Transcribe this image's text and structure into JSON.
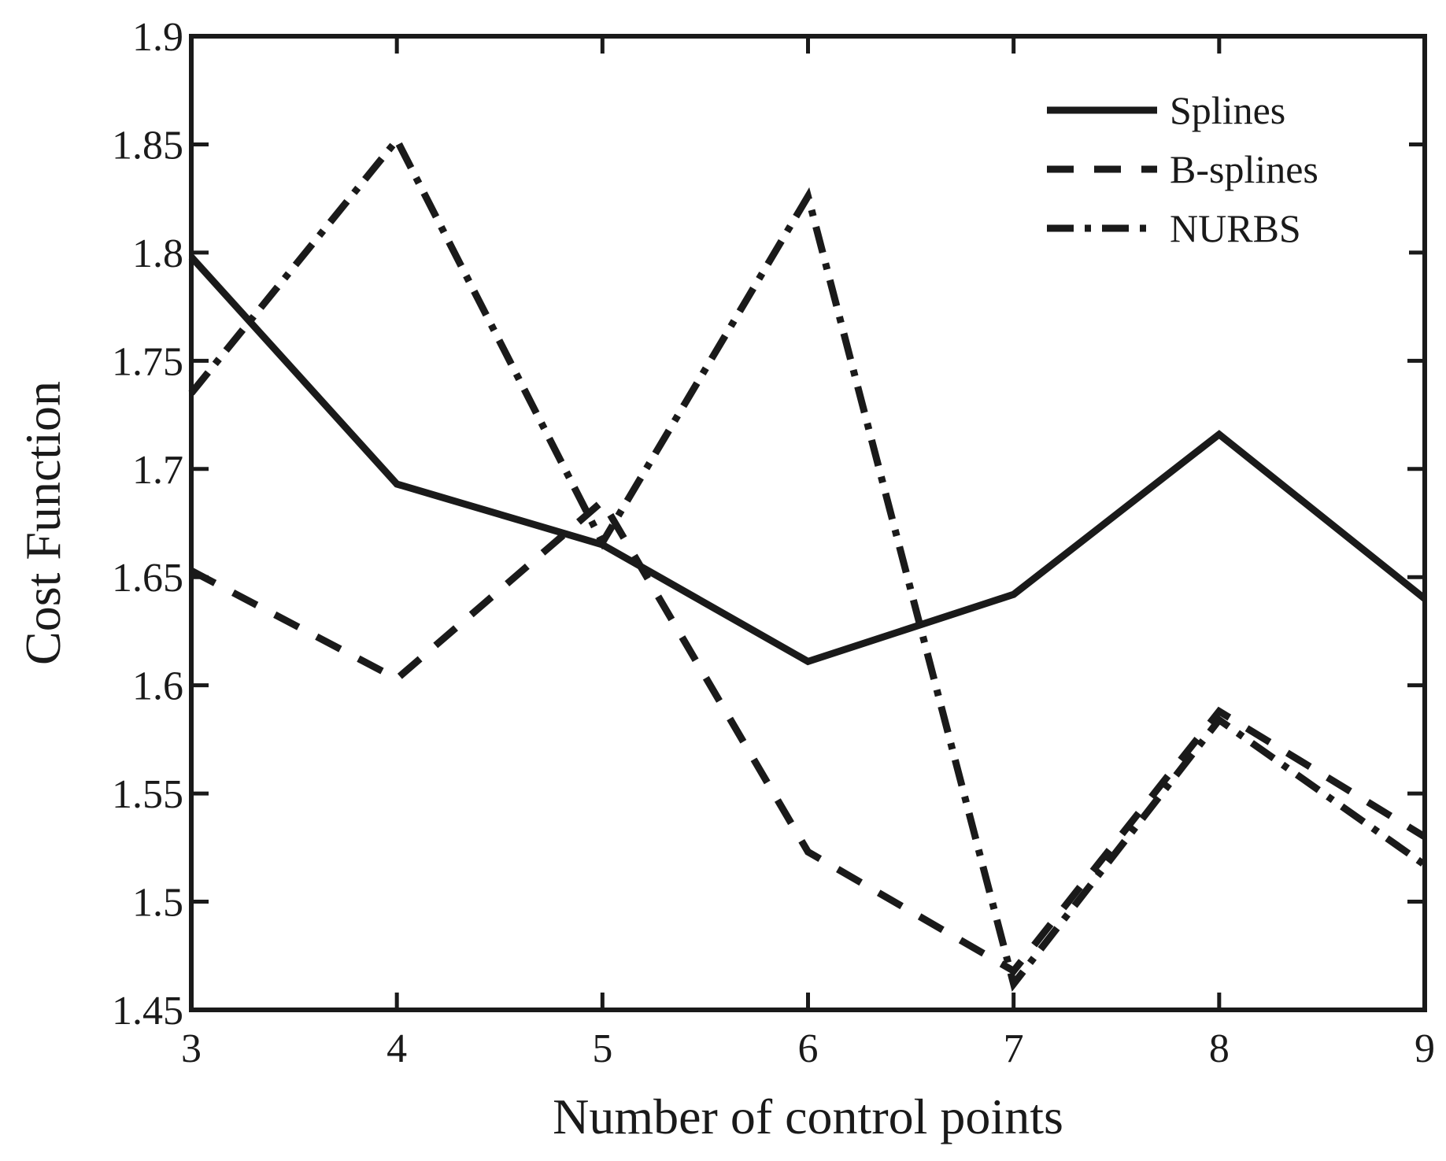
{
  "chart_data": {
    "type": "line",
    "xlabel": "Number of control points",
    "ylabel": "Cost Function",
    "xlim": [
      3,
      9
    ],
    "ylim": [
      1.45,
      1.9
    ],
    "x": [
      3,
      4,
      5,
      6,
      7,
      8,
      9
    ],
    "xticks": [
      "3",
      "4",
      "5",
      "6",
      "7",
      "8",
      "9"
    ],
    "yticks": [
      "1.45",
      "1.5",
      "1.55",
      "1.6",
      "1.65",
      "1.7",
      "1.75",
      "1.8",
      "1.85",
      "1.9"
    ],
    "grid": false,
    "legend_position": "top-right",
    "series": [
      {
        "name": "Splines",
        "style": "solid",
        "color": "#1a1a1a",
        "values": [
          1.798,
          1.693,
          1.665,
          1.611,
          1.642,
          1.716,
          1.64
        ]
      },
      {
        "name": "B-splines",
        "style": "dashed",
        "color": "#1a1a1a",
        "values": [
          1.653,
          1.603,
          1.685,
          1.523,
          1.468,
          1.588,
          1.53
        ]
      },
      {
        "name": "NURBS",
        "style": "dashdot",
        "color": "#1a1a1a",
        "values": [
          1.735,
          1.852,
          1.666,
          1.826,
          1.462,
          1.584,
          1.517
        ]
      }
    ]
  }
}
